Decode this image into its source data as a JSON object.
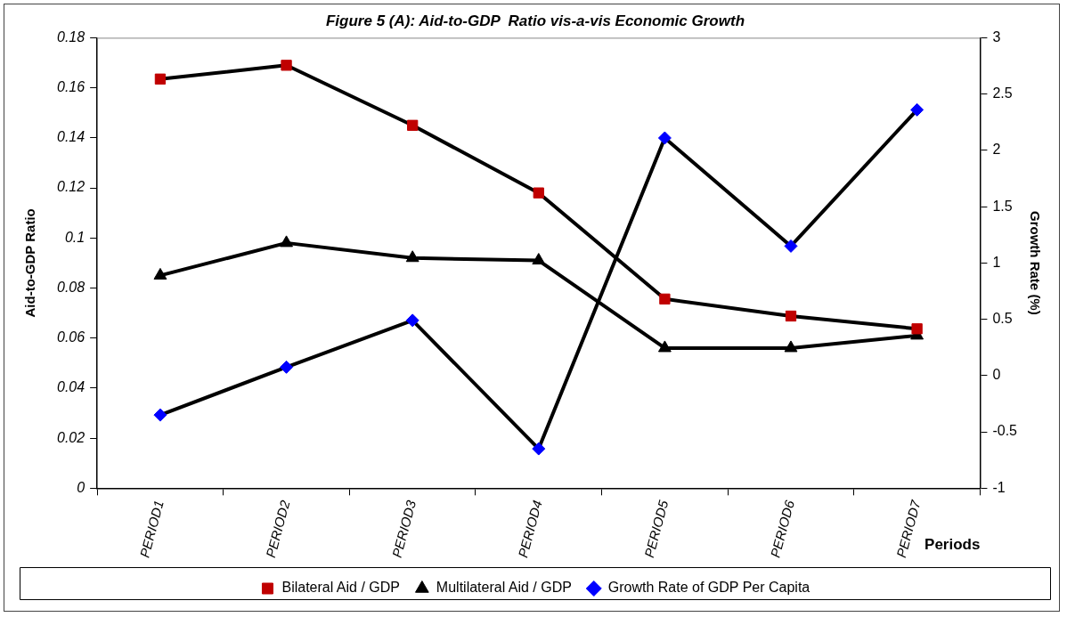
{
  "chart_data": {
    "type": "line",
    "title": "Figure 5 (A): Aid-to-GDP  Ratio vis-a-vis Economic Growth",
    "categories": [
      "PERIOD1",
      "PERIOD2",
      "PERIOD3",
      "PERIOD4",
      "PERIOD5",
      "PERIOD6",
      "PERIOD7"
    ],
    "xlabel": "Periods",
    "ylabel": "Aid-to-GDP Ratio",
    "y2label": "Growth Rate (%)",
    "series": [
      {
        "name": "Bilateral Aid / GDP",
        "color": "#c00000",
        "marker": "square",
        "values": [
          0.1635,
          0.169,
          0.145,
          0.118,
          0.0756,
          0.0688,
          0.0637
        ]
      },
      {
        "name": "Multilateral Aid / GDP",
        "color": "#000000",
        "marker": "triangle",
        "values": [
          0.085,
          0.098,
          0.092,
          0.091,
          0.056,
          0.056,
          0.061
        ]
      },
      {
        "name": "Growth Rate of GDP Per Capita",
        "color": "#0000ff",
        "marker": "diamond",
        "axis": "y2",
        "values": [
          -0.35,
          0.075,
          0.49,
          -0.65,
          2.11,
          1.15,
          2.36
        ]
      }
    ],
    "ylim": [
      0,
      0.18
    ],
    "yticks": [
      0,
      0.02,
      0.04,
      0.06,
      0.08,
      0.1,
      0.12,
      0.14,
      0.16,
      0.18
    ],
    "y2lim": [
      -1,
      3
    ],
    "y2ticks": [
      -1,
      -0.5,
      0,
      0.5,
      1,
      1.5,
      2,
      2.5,
      3
    ],
    "grid": false,
    "legend": "bottom",
    "line_style": "solid"
  }
}
